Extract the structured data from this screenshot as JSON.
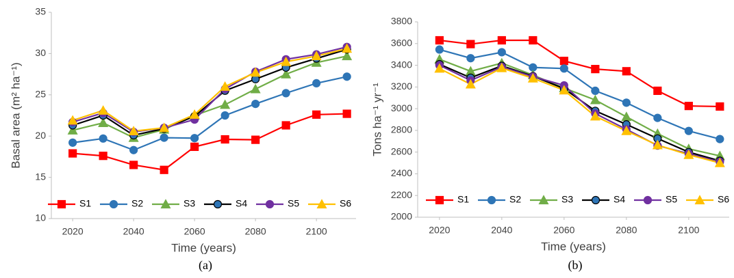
{
  "chart_data": [
    {
      "type": "line",
      "caption": "(a)",
      "xlabel": "Time (years)",
      "ylabel": "Basal area (m² ha⁻¹)",
      "x": [
        2020,
        2030,
        2040,
        2050,
        2060,
        2070,
        2080,
        2090,
        2100,
        2110
      ],
      "xlim": [
        2013,
        2113
      ],
      "xticks": [
        2020,
        2040,
        2060,
        2080,
        2100
      ],
      "ylim": [
        10,
        35
      ],
      "yticks": [
        10,
        15,
        20,
        25,
        30,
        35
      ],
      "grid": false,
      "legend": "bottom",
      "series": [
        {
          "name": "S1",
          "color": "#ff0000",
          "marker": "square",
          "values": [
            17.9,
            17.6,
            16.5,
            15.9,
            18.7,
            19.6,
            19.55,
            21.3,
            22.6,
            22.7
          ]
        },
        {
          "name": "S2",
          "color": "#2e75b6",
          "marker": "circle",
          "values": [
            19.2,
            19.7,
            18.3,
            19.8,
            19.75,
            22.5,
            23.9,
            25.2,
            26.4,
            27.2
          ]
        },
        {
          "name": "S3",
          "color": "#70ad47",
          "marker": "triangle",
          "values": [
            20.7,
            21.6,
            19.8,
            20.8,
            22.5,
            23.8,
            25.7,
            27.5,
            28.9,
            29.7
          ]
        },
        {
          "name": "S4",
          "color": "#000000",
          "marker": "circle",
          "values": [
            21.3,
            22.5,
            20.1,
            20.9,
            22.4,
            25.5,
            26.9,
            28.3,
            29.4,
            30.5
          ]
        },
        {
          "name": "S5",
          "color": "#7030a0",
          "marker": "circle",
          "values": [
            21.7,
            22.8,
            20.5,
            21.0,
            22.0,
            25.7,
            27.8,
            29.3,
            29.9,
            30.8
          ]
        },
        {
          "name": "S6",
          "color": "#ffc000",
          "marker": "triangle",
          "values": [
            21.9,
            23.1,
            20.6,
            21.0,
            22.6,
            26.0,
            27.7,
            29.0,
            29.7,
            30.6
          ]
        }
      ]
    },
    {
      "type": "line",
      "caption": "(b)",
      "xlabel": "Time (years)",
      "ylabel": "Tons ha⁻¹ yr⁻¹",
      "x": [
        2020,
        2030,
        2040,
        2050,
        2060,
        2070,
        2080,
        2090,
        2100,
        2110
      ],
      "xlim": [
        2013,
        2113
      ],
      "xticks": [
        2020,
        2040,
        2060,
        2080,
        2100
      ],
      "ylim": [
        2000,
        3800
      ],
      "yticks": [
        2000,
        2200,
        2400,
        2600,
        2800,
        3000,
        3200,
        3400,
        3600,
        3800
      ],
      "grid": false,
      "legend": "bottom",
      "series": [
        {
          "name": "S1",
          "color": "#ff0000",
          "marker": "square",
          "values": [
            3630,
            3595,
            3630,
            3630,
            3440,
            3365,
            3345,
            3165,
            3025,
            3020
          ]
        },
        {
          "name": "S2",
          "color": "#2e75b6",
          "marker": "circle",
          "values": [
            3545,
            3465,
            3520,
            3380,
            3370,
            3165,
            3055,
            2915,
            2795,
            2720
          ]
        },
        {
          "name": "S3",
          "color": "#70ad47",
          "marker": "triangle",
          "values": [
            3455,
            3345,
            3420,
            3310,
            3190,
            3080,
            2925,
            2770,
            2630,
            2565
          ]
        },
        {
          "name": "S4",
          "color": "#000000",
          "marker": "circle",
          "values": [
            3410,
            3285,
            3395,
            3300,
            3185,
            2980,
            2855,
            2725,
            2600,
            2520
          ]
        },
        {
          "name": "S5",
          "color": "#7030a0",
          "marker": "circle",
          "values": [
            3400,
            3260,
            3385,
            3295,
            3215,
            2955,
            2810,
            2660,
            2585,
            2510
          ]
        },
        {
          "name": "S6",
          "color": "#ffc000",
          "marker": "triangle",
          "values": [
            3370,
            3225,
            3375,
            3280,
            3170,
            2930,
            2795,
            2665,
            2575,
            2500
          ]
        }
      ]
    }
  ]
}
